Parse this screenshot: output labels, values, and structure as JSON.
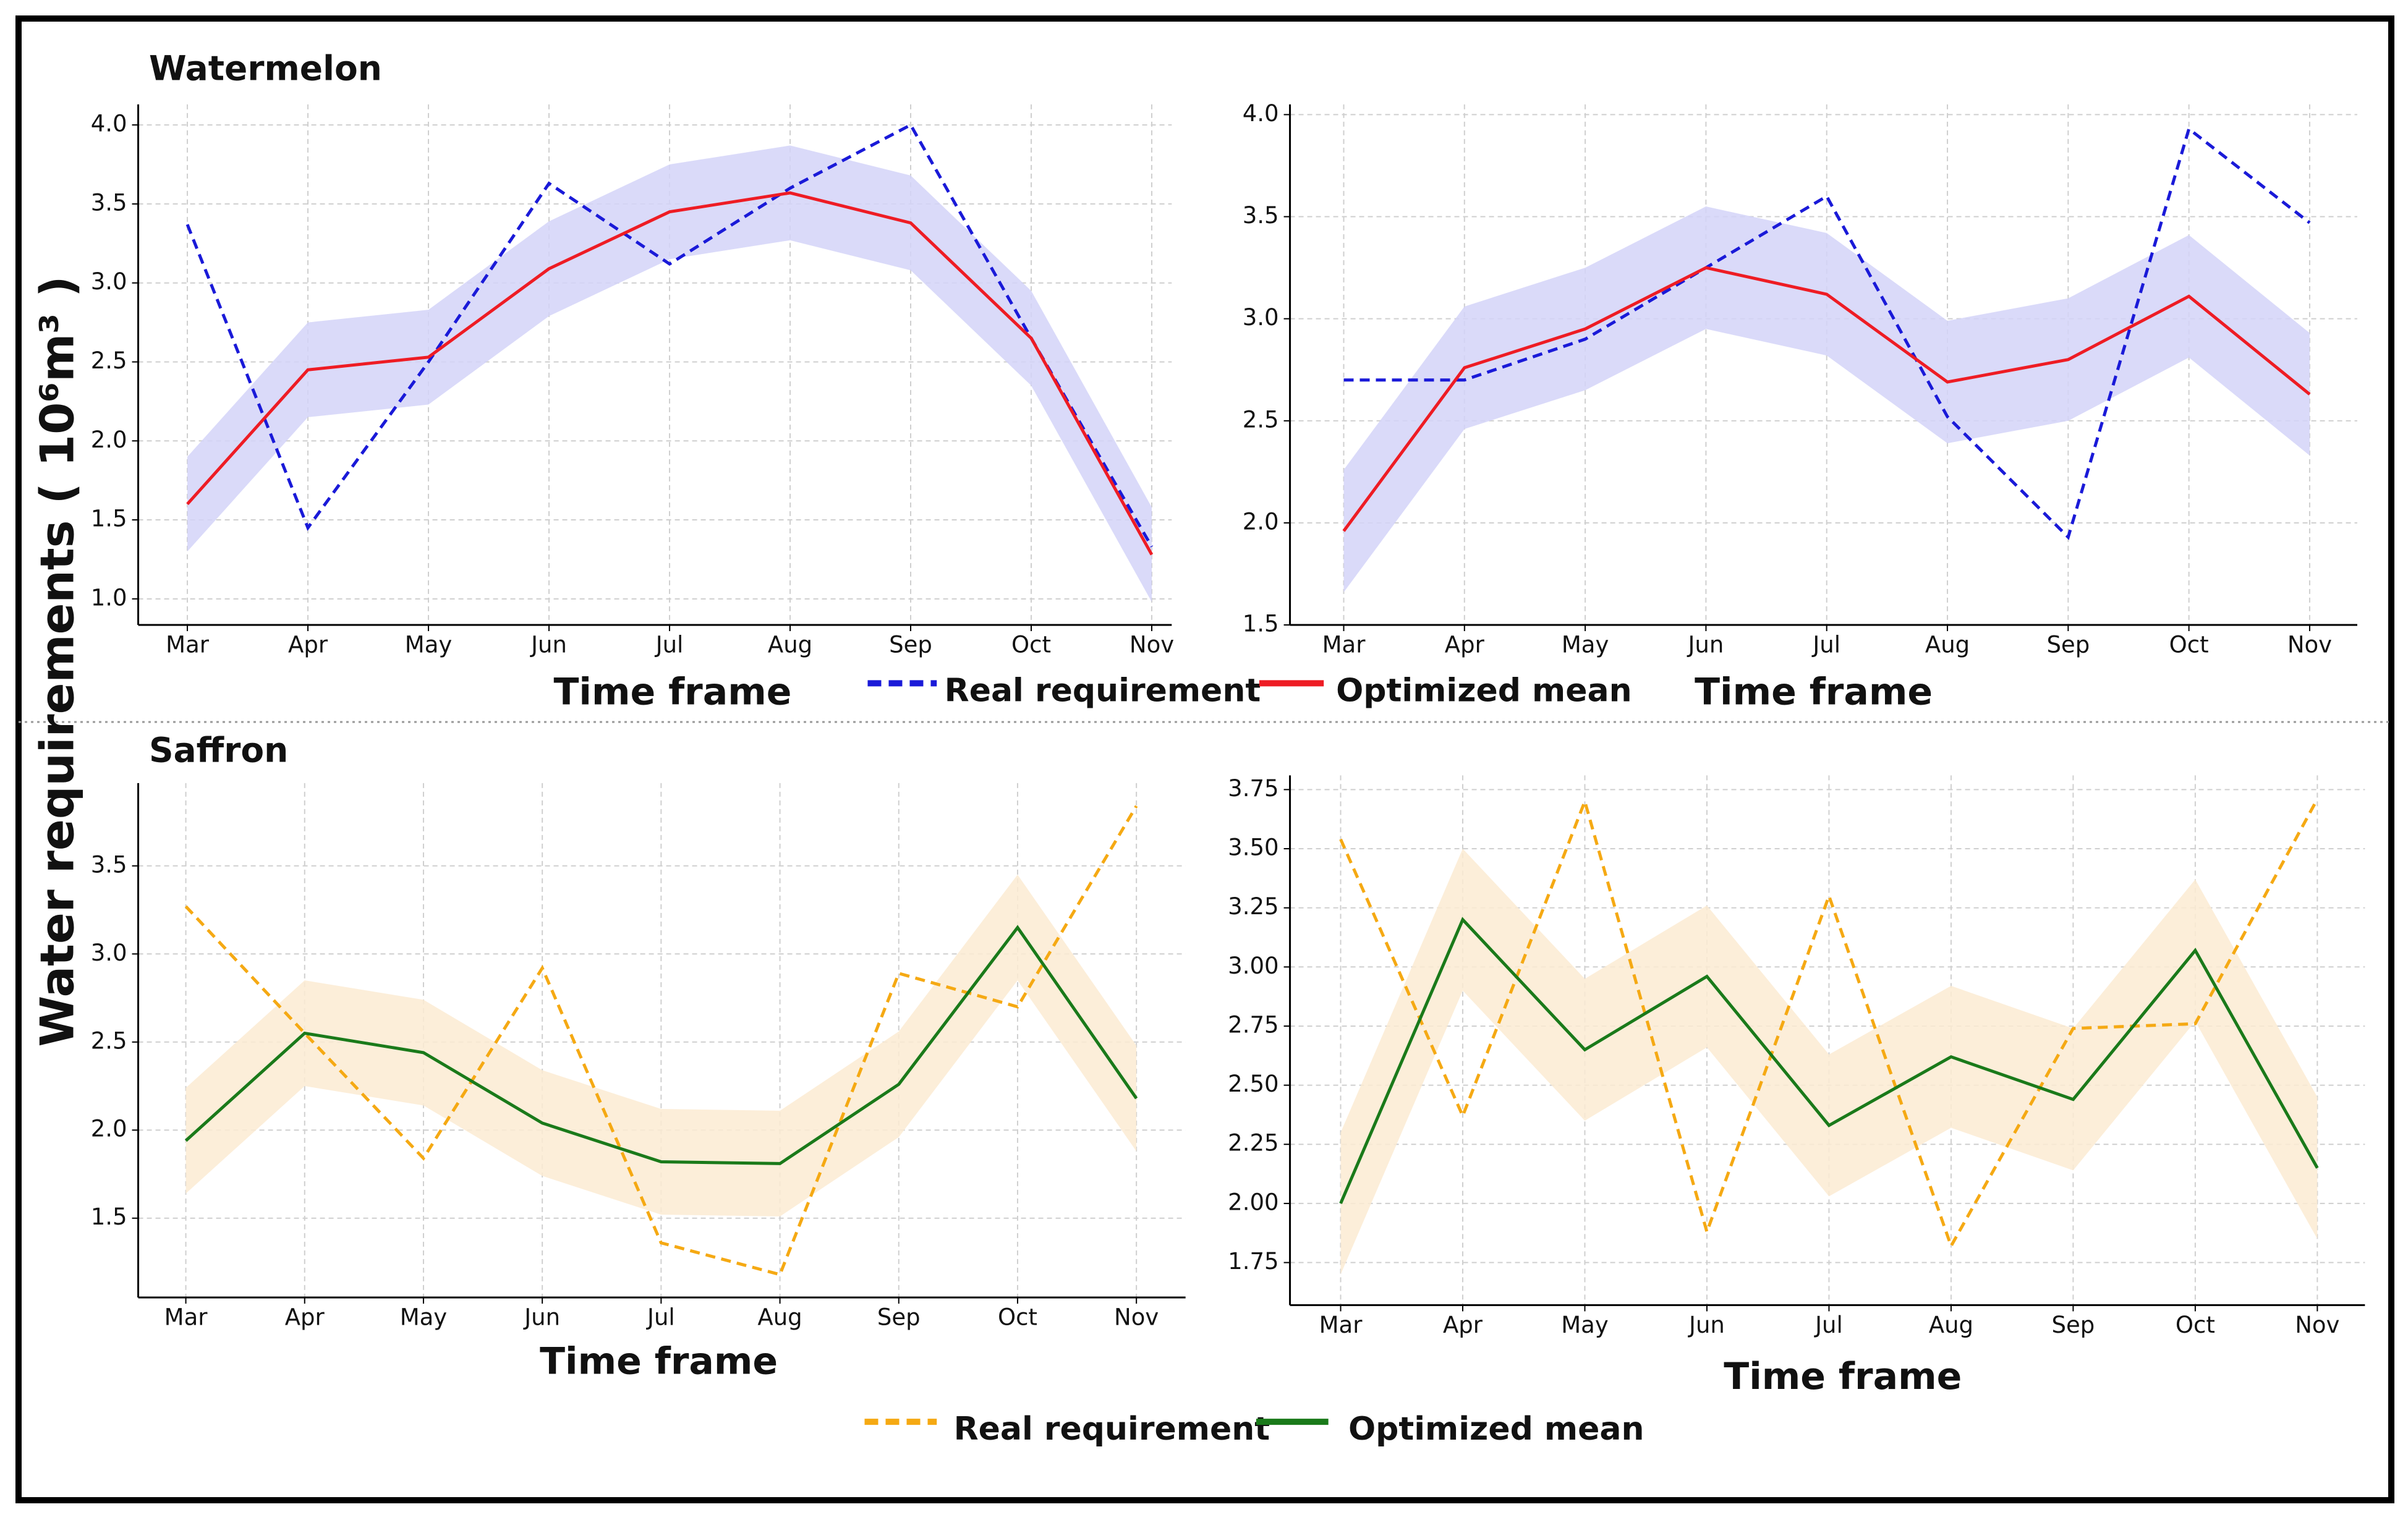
{
  "ylabel": "Water requirements ( 10⁶m³ )",
  "chart_data": [
    {
      "type": "line",
      "title": "Watermelon",
      "xlabel": "Time frame",
      "categories": [
        "Mar",
        "Apr",
        "May",
        "Jun",
        "Jul",
        "Aug",
        "Sep",
        "Oct",
        "Nov"
      ],
      "ylim": [
        0.835,
        4.13
      ],
      "yticks": [
        {
          "value": 1,
          "label": "1.0"
        },
        1.5,
        {
          "value": 2,
          "label": "2.0"
        },
        2.5,
        {
          "value": 3,
          "label": "3.0"
        },
        3.5,
        {
          "value": 4,
          "label": "4.0"
        }
      ],
      "grid": true,
      "series": [
        {
          "name": "Real requirement",
          "color": "#1a1ad8",
          "dashed": true,
          "values": [
            3.37,
            1.45,
            2.5,
            3.63,
            3.12,
            3.6,
            4.0,
            2.65,
            1.33
          ]
        },
        {
          "name": "Optimized mean",
          "color": "#ee1c24",
          "band_color": "#d3d3f8",
          "values": [
            1.6,
            2.45,
            2.53,
            3.09,
            3.45,
            3.57,
            3.38,
            2.65,
            1.28
          ],
          "band_upper": [
            1.9,
            2.75,
            2.83,
            3.39,
            3.75,
            3.87,
            3.68,
            2.95,
            1.58
          ],
          "band_lower": [
            1.3,
            2.15,
            2.23,
            2.79,
            3.15,
            3.27,
            3.08,
            2.35,
            0.98
          ]
        }
      ]
    },
    {
      "type": "line",
      "xlabel": "Time frame",
      "categories": [
        "Mar",
        "Apr",
        "May",
        "Jun",
        "Jul",
        "Aug",
        "Sep",
        "Oct",
        "Nov"
      ],
      "ylim": [
        1.5,
        4.05
      ],
      "yticks": [
        1.5,
        {
          "value": 2,
          "label": "2.0"
        },
        2.5,
        {
          "value": 3,
          "label": "3.0"
        },
        3.5,
        {
          "value": 4,
          "label": "4.0"
        }
      ],
      "grid": true,
      "series": [
        {
          "name": "Real requirement",
          "color": "#1a1ad8",
          "dashed": true,
          "values": [
            2.7,
            2.7,
            2.9,
            3.25,
            3.6,
            2.52,
            1.93,
            3.93,
            3.47
          ]
        },
        {
          "name": "Optimized mean",
          "color": "#ee1c24",
          "band_color": "#d3d3f8",
          "values": [
            1.96,
            2.76,
            2.95,
            3.25,
            3.12,
            2.69,
            2.8,
            3.11,
            2.63
          ],
          "band_upper": [
            2.26,
            3.06,
            3.25,
            3.55,
            3.42,
            2.99,
            3.1,
            3.41,
            2.93
          ],
          "band_lower": [
            1.66,
            2.46,
            2.65,
            2.95,
            2.82,
            2.39,
            2.5,
            2.81,
            2.33
          ]
        }
      ]
    },
    {
      "type": "line",
      "title": "Saffron",
      "xlabel": "Time frame",
      "categories": [
        "Mar",
        "Apr",
        "May",
        "Jun",
        "Jul",
        "Aug",
        "Sep",
        "Oct",
        "Nov"
      ],
      "ylim": [
        1.05,
        3.97
      ],
      "yticks": [
        1.5,
        {
          "value": 2,
          "label": "2.0"
        },
        2.5,
        {
          "value": 3,
          "label": "3.0"
        },
        3.5
      ],
      "grid": true,
      "series": [
        {
          "name": "Real requirement",
          "color": "#f5a913",
          "dashed": true,
          "values": [
            3.27,
            2.55,
            1.84,
            2.92,
            1.36,
            1.18,
            2.89,
            2.7,
            3.84
          ]
        },
        {
          "name": "Optimized mean",
          "color": "#1a7a1a",
          "band_color": "#fcebd2",
          "values": [
            1.94,
            2.55,
            2.44,
            2.04,
            1.82,
            1.81,
            2.26,
            3.15,
            2.18
          ],
          "band_upper": [
            2.24,
            2.85,
            2.74,
            2.34,
            2.12,
            2.11,
            2.56,
            3.45,
            2.48
          ],
          "band_lower": [
            1.64,
            2.25,
            2.14,
            1.74,
            1.52,
            1.51,
            1.96,
            2.85,
            1.88
          ]
        }
      ]
    },
    {
      "type": "line",
      "xlabel": "Time frame",
      "categories": [
        "Mar",
        "Apr",
        "May",
        "Jun",
        "Jul",
        "Aug",
        "Sep",
        "Oct",
        "Nov"
      ],
      "ylim": [
        1.57,
        3.81
      ],
      "yticks": [
        1.75,
        {
          "value": 2,
          "label": "2.00"
        },
        2.25,
        {
          "value": 2.5,
          "label": "2.50"
        },
        2.75,
        {
          "value": 3,
          "label": "3.00"
        },
        3.25,
        {
          "value": 3.5,
          "label": "3.50"
        },
        3.75
      ],
      "grid": true,
      "series": [
        {
          "name": "Real requirement",
          "color": "#f5a913",
          "dashed": true,
          "values": [
            3.54,
            2.37,
            3.7,
            1.88,
            3.3,
            1.82,
            2.74,
            2.76,
            3.71
          ]
        },
        {
          "name": "Optimized mean",
          "color": "#1a7a1a",
          "band_color": "#fcebd2",
          "values": [
            2.0,
            3.2,
            2.65,
            2.96,
            2.33,
            2.62,
            2.44,
            3.07,
            2.15
          ],
          "band_upper": [
            2.3,
            3.5,
            2.95,
            3.26,
            2.63,
            2.92,
            2.74,
            3.37,
            2.45
          ],
          "band_lower": [
            1.7,
            2.9,
            2.35,
            2.66,
            2.03,
            2.32,
            2.14,
            2.77,
            1.85
          ]
        }
      ]
    }
  ]
}
